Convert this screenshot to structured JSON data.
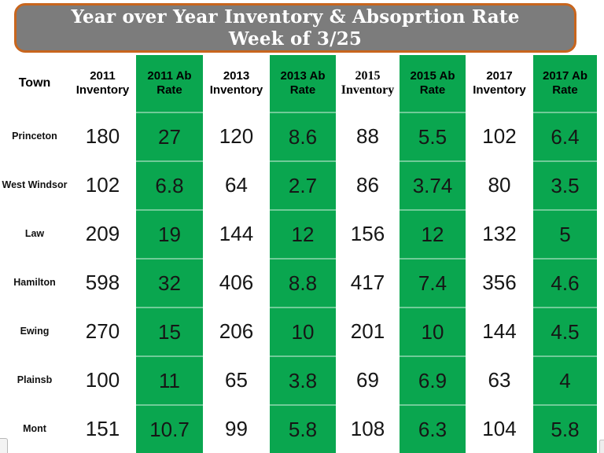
{
  "slide": {
    "title_line1": "Year over Year Inventory & Absoprtion Rate",
    "title_line2": "Week of 3/25"
  },
  "colors": {
    "accent_green": "#0AA64F",
    "title_background": "#7C7C7C",
    "title_border_orange": "#C8651D"
  },
  "chart_data": {
    "type": "table",
    "title": "Year over Year Inventory & Absoprtion Rate Week of 3/25",
    "header_lines": [
      {
        "line1": "Town",
        "line2": ""
      },
      {
        "line1": "2011",
        "line2": "Inventory"
      },
      {
        "line1": "2011 Ab",
        "line2": "Rate"
      },
      {
        "line1": "2013",
        "line2": "Inventory"
      },
      {
        "line1": "2013 Ab",
        "line2": "Rate"
      },
      {
        "line1": "2015",
        "line2": "Inventory"
      },
      {
        "line1": "2015 Ab",
        "line2": "Rate"
      },
      {
        "line1": "2017",
        "line2": "Inventory"
      },
      {
        "line1": "2017 Ab",
        "line2": "Rate"
      }
    ],
    "columns": [
      "Town",
      "2011 Inventory",
      "2011 Ab Rate",
      "2013 Inventory",
      "2013 Ab Rate",
      "2015 Inventory",
      "2015 Ab Rate",
      "2017 Inventory",
      "2017 Ab Rate"
    ],
    "rows": [
      {
        "town": "Princeton",
        "values": [
          "180",
          "27",
          "120",
          "8.6",
          "88",
          "5.5",
          "102",
          "6.4"
        ]
      },
      {
        "town": "West Windsor",
        "values": [
          "102",
          "6.8",
          "64",
          "2.7",
          "86",
          "3.74",
          "80",
          "3.5"
        ]
      },
      {
        "town": "Law",
        "values": [
          "209",
          "19",
          "144",
          "12",
          "156",
          "12",
          "132",
          "5"
        ]
      },
      {
        "town": "Hamilton",
        "values": [
          "598",
          "32",
          "406",
          "8.8",
          "417",
          "7.4",
          "356",
          "4.6"
        ]
      },
      {
        "town": "Ewing",
        "values": [
          "270",
          "15",
          "206",
          "10",
          "201",
          "10",
          "144",
          "4.5"
        ]
      },
      {
        "town": "Plainsb",
        "values": [
          "100",
          "11",
          "65",
          "3.8",
          "69",
          "6.9",
          "63",
          "4"
        ]
      },
      {
        "town": "Mont",
        "values": [
          "151",
          "10.7",
          "99",
          "5.8",
          "108",
          "6.3",
          "104",
          "5.8"
        ]
      }
    ]
  }
}
